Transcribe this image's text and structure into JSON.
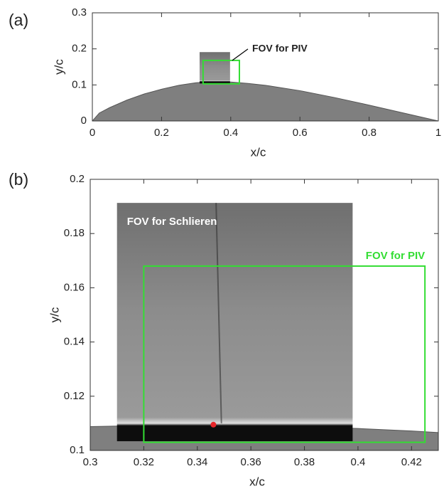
{
  "chart_data": [
    {
      "type": "area",
      "panel_label": "(a)",
      "xlabel": "x/c",
      "ylabel": "y/c",
      "x": [
        0,
        0.02,
        0.05,
        0.1,
        0.15,
        0.2,
        0.25,
        0.3,
        0.35,
        0.4,
        0.45,
        0.5,
        0.6,
        0.7,
        0.8,
        0.9,
        1
      ],
      "series": [
        {
          "color": "#7f7f7f",
          "values": [
            0,
            0.022,
            0.037,
            0.058,
            0.075,
            0.088,
            0.099,
            0.106,
            0.109,
            0.108,
            0.104,
            0.099,
            0.084,
            0.065,
            0.044,
            0.022,
            0
          ]
        }
      ],
      "xlim": [
        0,
        1
      ],
      "ylim": [
        0,
        0.3
      ],
      "xticks": [
        0,
        0.2,
        0.4,
        0.6,
        0.8,
        1
      ],
      "yticks": [
        0,
        0.1,
        0.2,
        0.3
      ],
      "image_region": {
        "xlim": [
          0.31,
          0.398
        ],
        "ylim": [
          0.104,
          0.191
        ]
      },
      "regions": [
        {
          "name": "FOV for PIV",
          "color": "#33dd33",
          "xlim": [
            0.32,
            0.425
          ],
          "ylim": [
            0.103,
            0.168
          ]
        }
      ]
    },
    {
      "type": "area",
      "panel_label": "(b)",
      "xlabel": "x/c",
      "ylabel": "y/c",
      "x": [
        0.3,
        0.32,
        0.34,
        0.36,
        0.38,
        0.4,
        0.42,
        0.43
      ],
      "series": [
        {
          "color": "#7f7f7f",
          "values": [
            0.1088,
            0.1092,
            0.1093,
            0.1091,
            0.1087,
            0.1081,
            0.1072,
            0.1066
          ]
        }
      ],
      "xlim": [
        0.3,
        0.43
      ],
      "ylim": [
        0.1,
        0.2
      ],
      "xticks": [
        0.3,
        0.32,
        0.34,
        0.36,
        0.38,
        0.4,
        0.42
      ],
      "yticks": [
        0.1,
        0.12,
        0.14,
        0.16,
        0.18,
        0.2
      ],
      "image_region": {
        "label": "FOV for Schlieren",
        "xlim": [
          0.31,
          0.398
        ],
        "ylim": [
          0.1034,
          0.1913
        ]
      },
      "regions": [
        {
          "name": "FOV for PIV",
          "color": "#33dd33",
          "xlim": [
            0.32,
            0.425
          ],
          "ylim": [
            0.103,
            0.168
          ]
        }
      ],
      "point": {
        "x": 0.346,
        "y": 0.1095,
        "color": "#e8262a"
      }
    }
  ]
}
